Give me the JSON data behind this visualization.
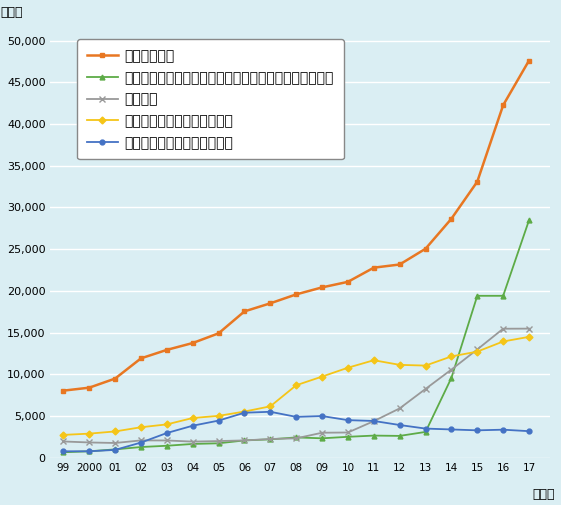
{
  "years": [
    1999,
    2000,
    2001,
    2002,
    2003,
    2004,
    2005,
    2006,
    2007,
    2008,
    2009,
    2010,
    2011,
    2012,
    2013,
    2014,
    2015,
    2016,
    2017
  ],
  "all_opioid": [
    8050,
    8407,
    9496,
    11920,
    12936,
    13756,
    14918,
    17545,
    18515,
    19582,
    20422,
    21088,
    22784,
    23166,
    25052,
    28647,
    33091,
    42249,
    47600
  ],
  "synthetic_excl_methadone": [
    670,
    782,
    1013,
    1295,
    1448,
    1664,
    1742,
    2088,
    2213,
    2446,
    2339,
    2519,
    2666,
    2628,
    3105,
    9580,
    19413,
    19413,
    28466
  ],
  "heroin": [
    1960,
    1842,
    1779,
    2089,
    2080,
    1943,
    2009,
    2088,
    2257,
    2336,
    3008,
    3036,
    4397,
    5925,
    8257,
    10574,
    12989,
    15469,
    15482
  ],
  "natural_semisynthetic": [
    2749,
    2900,
    3163,
    3665,
    4007,
    4773,
    5029,
    5546,
    6172,
    8695,
    9736,
    10799,
    11693,
    11140,
    11053,
    12151,
    12727,
    13942,
    14495
  ],
  "methadone": [
    784,
    786,
    952,
    1831,
    2974,
    3849,
    4462,
    5406,
    5518,
    4908,
    5007,
    4516,
    4418,
    3932,
    3506,
    3400,
    3295,
    3373,
    3194
  ],
  "series_colors": [
    "#E87722",
    "#5DAB47",
    "#999999",
    "#F5C518",
    "#4472C4"
  ],
  "series_labels": [
    "全オピオイド",
    "合成オピオイド（フェンタニルなど。メタドンを除く）",
    "ヘロイン",
    "天然および半合成オピオイド",
    "合成オピオイド（メタドン）"
  ],
  "ylabel": "（人）",
  "xlabel": "（年）",
  "ylim": [
    0,
    52000
  ],
  "yticks": [
    0,
    5000,
    10000,
    15000,
    20000,
    25000,
    30000,
    35000,
    40000,
    45000,
    50000
  ],
  "xtick_labels": [
    "99",
    "2000",
    "01",
    "02",
    "03",
    "04",
    "05",
    "06",
    "07",
    "08",
    "09",
    "10",
    "11",
    "12",
    "13",
    "14",
    "15",
    "16",
    "17"
  ],
  "background_color": "#daeef3",
  "grid_color": "#ffffff",
  "markers": [
    "s",
    "^",
    "x",
    "D",
    "o"
  ],
  "marker_sizes": [
    3.5,
    3.5,
    4.5,
    3.5,
    3.5
  ],
  "linewidths": [
    1.8,
    1.3,
    1.3,
    1.3,
    1.3
  ]
}
